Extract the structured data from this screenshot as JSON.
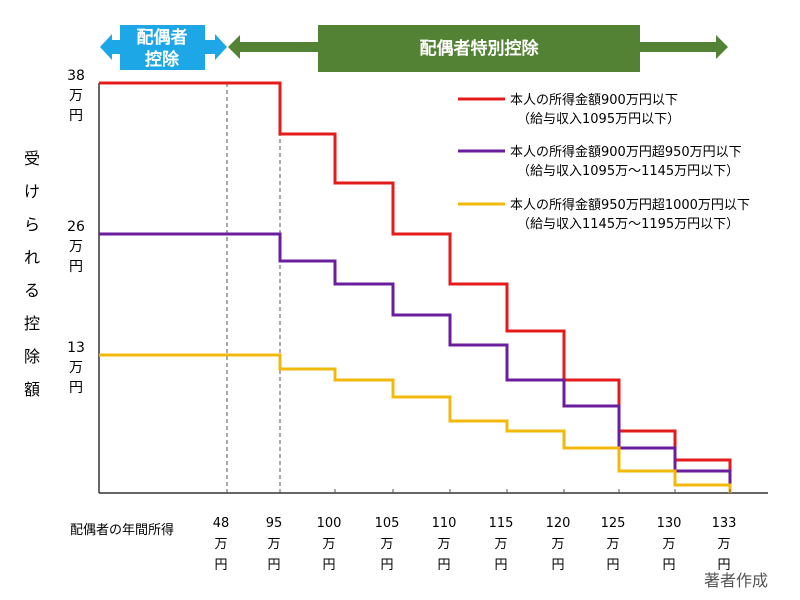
{
  "chart_data": {
    "type": "line",
    "step": true,
    "title": "",
    "xlabel": "配偶者の年間所得",
    "ylabel": "受けられる控除額",
    "x_ticks": [
      {
        "value": 48,
        "l1": "48",
        "l2": "万",
        "l3": "円"
      },
      {
        "value": 95,
        "l1": "95",
        "l2": "万",
        "l3": "円"
      },
      {
        "value": 100,
        "l1": "100",
        "l2": "万",
        "l3": "円"
      },
      {
        "value": 105,
        "l1": "105",
        "l2": "万",
        "l3": "円"
      },
      {
        "value": 110,
        "l1": "110",
        "l2": "万",
        "l3": "円"
      },
      {
        "value": 115,
        "l1": "115",
        "l2": "万",
        "l3": "円"
      },
      {
        "value": 120,
        "l1": "120",
        "l2": "万",
        "l3": "円"
      },
      {
        "value": 125,
        "l1": "125",
        "l2": "万",
        "l3": "円"
      },
      {
        "value": 130,
        "l1": "130",
        "l2": "万",
        "l3": "円"
      },
      {
        "value": 133,
        "l1": "133",
        "l2": "万",
        "l3": "円"
      }
    ],
    "y_ticks": [
      {
        "value": 38,
        "l1": "38",
        "l2": "万",
        "l3": "円"
      },
      {
        "value": 26,
        "l1": "26",
        "l2": "万",
        "l3": "円"
      },
      {
        "value": 13,
        "l1": "13",
        "l2": "万",
        "l3": "円"
      }
    ],
    "x_breaks": [
      0,
      95,
      100,
      105,
      110,
      115,
      120,
      125,
      130,
      133
    ],
    "dashed_lines_x": [
      48,
      95
    ],
    "series": [
      {
        "name": "本人の所得金額900万円以下",
        "sub": "（給与収入1095万円以下）",
        "color": "#e31b1b",
        "values": [
          38,
          36,
          31,
          26,
          21,
          16,
          11,
          6,
          3,
          0
        ]
      },
      {
        "name": "本人の所得金額900万円超950万円以下",
        "sub": "（給与収入1095万～1145万円以下）",
        "color": "#6a1e9e",
        "values": [
          26,
          24,
          21,
          18,
          14,
          11,
          8,
          4,
          2,
          0
        ]
      },
      {
        "name": "本人の所得金額950万円超1000万円以下",
        "sub": "（給与収入1145万～1195万円以下）",
        "color": "#f2b90c",
        "values": [
          13,
          12,
          11,
          9,
          7,
          6,
          4,
          2,
          1,
          0
        ]
      }
    ],
    "legend_position": "top-right",
    "grid": false
  },
  "banners": {
    "spouse_deduction": {
      "line1": "配偶者",
      "line2": "控除",
      "color": "#1ea7e6"
    },
    "special_deduction": {
      "label": "配偶者特別控除",
      "color": "#548235"
    }
  },
  "credit": "著者作成"
}
